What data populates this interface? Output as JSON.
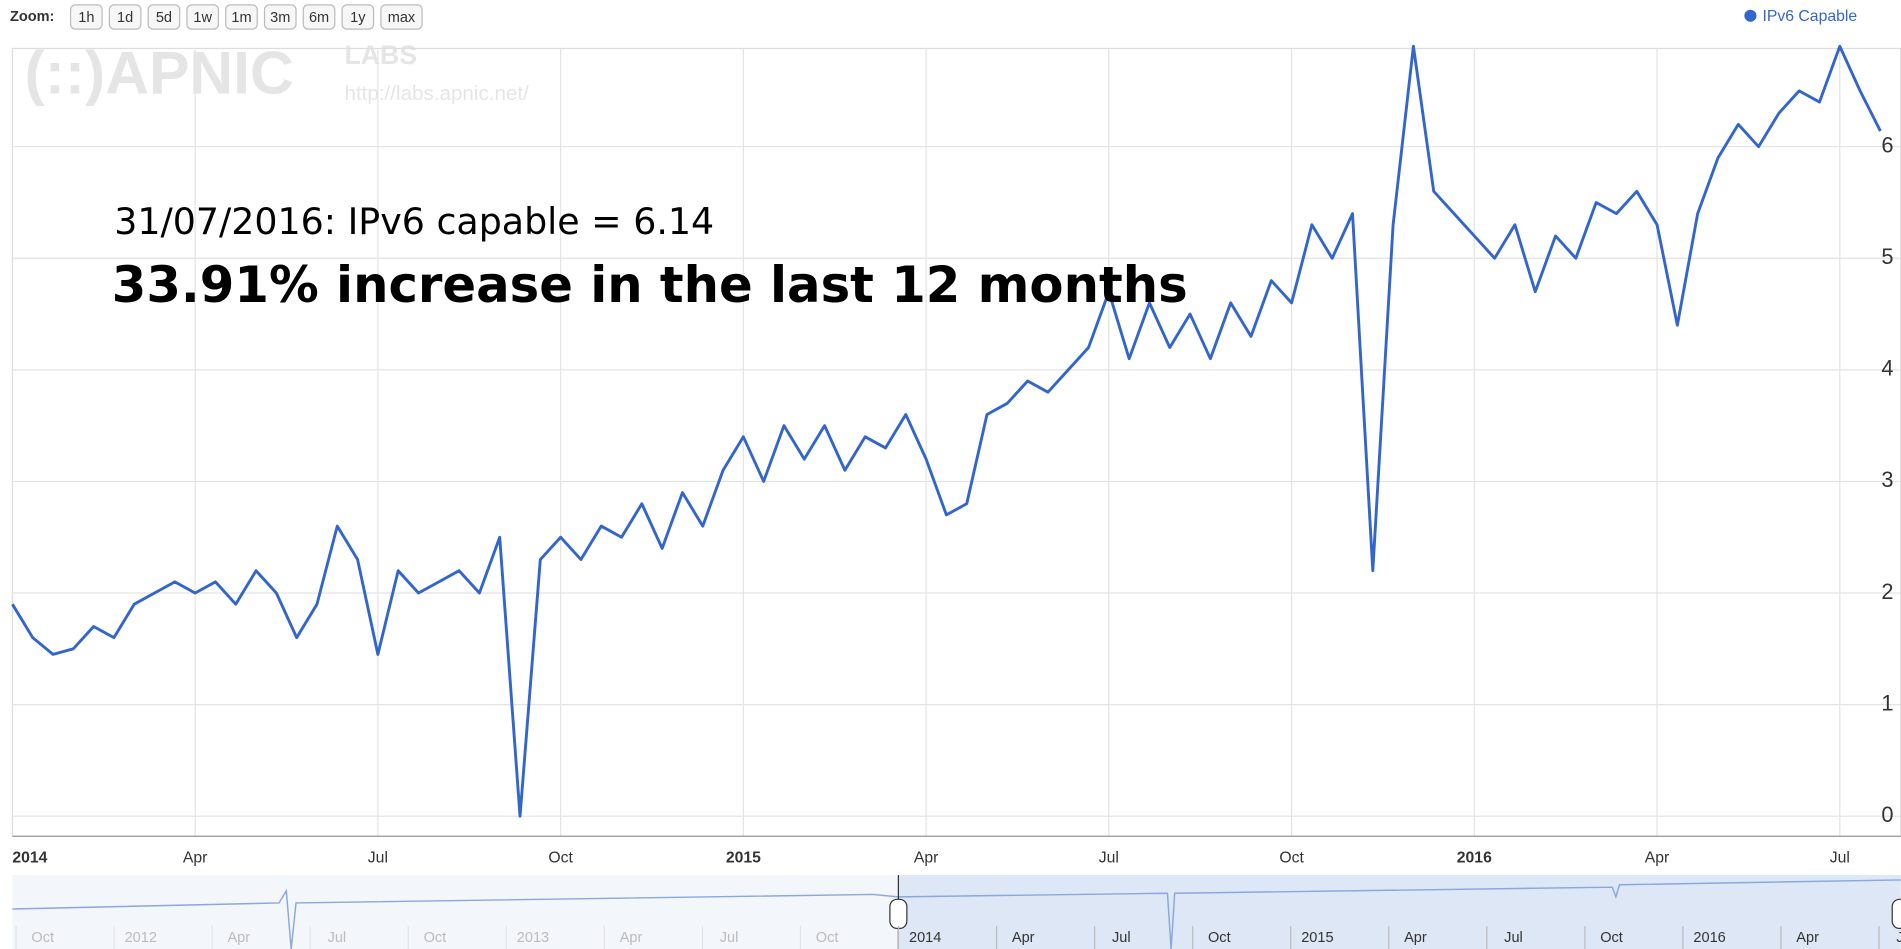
{
  "zoom": {
    "label": "Zoom:",
    "buttons": [
      "1h",
      "1d",
      "5d",
      "1w",
      "1m",
      "3m",
      "6m",
      "1y",
      "max"
    ]
  },
  "watermark": {
    "logo": "(::)APNIC",
    "labs": "LABS",
    "url": "http://labs.apnic.net/"
  },
  "chart_data": {
    "type": "line",
    "annotations": [
      "31/07/2016: IPv6 capable = 6.14",
      "33.91% increase in the last 12 months"
    ],
    "categories": [
      "2014",
      null,
      null,
      null,
      null,
      null,
      null,
      null,
      null,
      "Apr",
      null,
      null,
      null,
      null,
      null,
      null,
      null,
      null,
      "Jul",
      null,
      null,
      null,
      null,
      null,
      null,
      null,
      null,
      "Oct",
      null,
      null,
      null,
      null,
      null,
      null,
      null,
      null,
      "2015",
      null,
      null,
      null,
      null,
      null,
      null,
      null,
      null,
      "Apr",
      null,
      null,
      null,
      null,
      null,
      null,
      null,
      null,
      "Jul",
      null,
      null,
      null,
      null,
      null,
      null,
      null,
      null,
      "Oct",
      null,
      null,
      null,
      null,
      null,
      null,
      null,
      null,
      "2016",
      null,
      null,
      null,
      null,
      null,
      null,
      null,
      null,
      "Apr",
      null,
      null,
      null,
      null,
      null,
      null,
      null,
      null,
      "Jul",
      null,
      null
    ],
    "series": [
      {
        "name": "IPv6 Capable",
        "color": "#3366cc",
        "values": [
          1.9,
          1.6,
          1.45,
          1.5,
          1.7,
          1.6,
          1.9,
          2.0,
          2.1,
          2.0,
          2.1,
          1.9,
          2.2,
          2.0,
          1.6,
          1.9,
          2.6,
          2.3,
          1.45,
          2.2,
          2.0,
          2.1,
          2.2,
          2.0,
          2.5,
          0,
          2.3,
          2.5,
          2.3,
          2.6,
          2.5,
          2.8,
          2.4,
          2.9,
          2.6,
          3.1,
          3.4,
          3.0,
          3.5,
          3.2,
          3.5,
          3.1,
          3.4,
          3.3,
          3.6,
          3.2,
          2.7,
          2.8,
          3.6,
          3.7,
          3.9,
          3.8,
          4.0,
          4.2,
          4.7,
          4.1,
          4.6,
          4.2,
          4.5,
          4.1,
          4.6,
          4.3,
          4.8,
          4.6,
          5.3,
          5.0,
          5.4,
          2.2,
          5.3,
          6.9,
          5.6,
          5.4,
          5.2,
          5.0,
          5.3,
          4.7,
          5.2,
          5.0,
          5.5,
          5.4,
          5.6,
          5.3,
          4.4,
          5.4,
          5.9,
          6.2,
          6.0,
          6.3,
          6.5,
          6.4,
          6.9,
          6.5,
          6.14
        ]
      }
    ],
    "ylim": [
      -0.18,
      6.88
    ],
    "yticks": [
      0,
      1,
      2,
      3,
      4,
      5,
      6
    ],
    "grid": true,
    "legend": "top-right"
  },
  "navigator": {
    "labels": [
      "Oct",
      "2012",
      "Apr",
      "Jul",
      "Oct",
      "2013",
      "Apr",
      "Jul",
      "Oct",
      "2014",
      "Apr",
      "Jul",
      "Oct",
      "2015",
      "Apr",
      "Jul",
      "Oct",
      "2016",
      "Apr",
      "Jul"
    ]
  }
}
